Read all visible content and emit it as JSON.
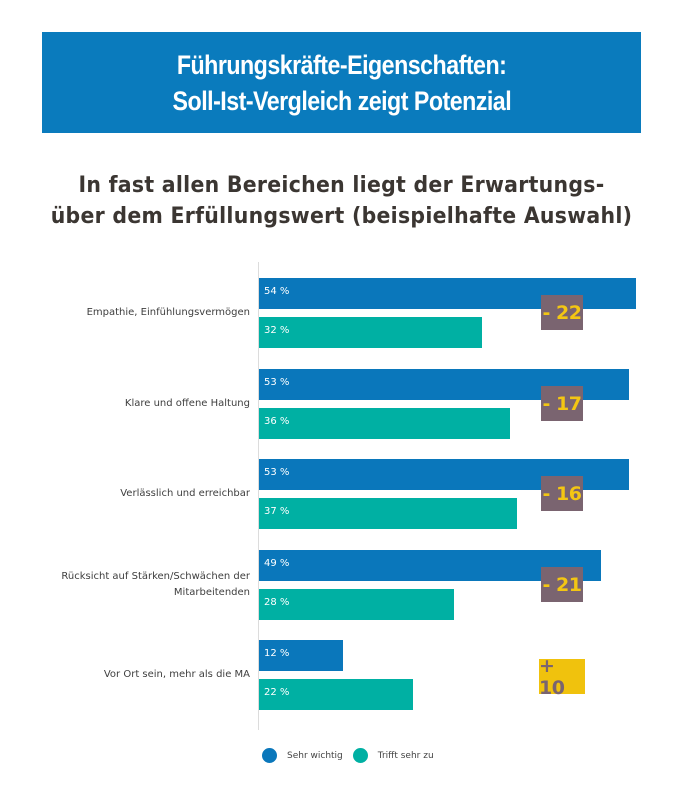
{
  "banner": {
    "line1": "Führungskräfte-Eigenschaften:",
    "line2": "Soll-Ist-Vergleich zeigt Potenzial"
  },
  "subtitle": {
    "line1": "In fast allen Bereichen liegt der Erwartungs-",
    "line2": "über dem Erfüllungswert (beispielhafte Auswahl)"
  },
  "colors": {
    "banner": "#0a7bbd",
    "sehr_wichtig": "#0a77bb",
    "trifft_sehr_zu": "#00b0a3",
    "diff_negative_bg": "#7a6470",
    "diff_negative_text": "#f3c613",
    "diff_positive_bg": "#f0c20d",
    "diff_positive_text": "#7a6470"
  },
  "chart_data": {
    "type": "bar",
    "orientation": "horizontal",
    "title": "Führungskräfte-Eigenschaften: Soll-Ist-Vergleich zeigt Potenzial",
    "subtitle": "In fast allen Bereichen liegt der Erwartungs- über dem Erfüllungswert (beispielhafte Auswahl)",
    "categories": [
      "Empathie, Einfühlungsvermögen",
      "Klare und offene Haltung",
      "Verlässlich und erreichbar",
      "Rücksicht auf Stärken/Schwächen der Mitarbeitenden",
      "Vor Ort sein, mehr als die MA"
    ],
    "category_lines": [
      [
        "Empathie, Einfühlungsvermögen"
      ],
      [
        "Klare und offene Haltung"
      ],
      [
        "Verlässlich und erreichbar"
      ],
      [
        "Rücksicht auf Stärken/Schwächen der",
        "Mitarbeitenden"
      ],
      [
        "Vor Ort sein, mehr als die MA"
      ]
    ],
    "series": [
      {
        "name": "Sehr wichtig",
        "values": [
          54,
          53,
          53,
          49,
          12
        ],
        "labels": [
          "54 %",
          "53 %",
          "53 %",
          "49 %",
          "12 %"
        ]
      },
      {
        "name": "Trifft sehr zu",
        "values": [
          32,
          36,
          37,
          28,
          22
        ],
        "labels": [
          "32 %",
          "36 %",
          "37 %",
          "28 %",
          "22 %"
        ]
      }
    ],
    "differences": [
      "- 22",
      "- 17",
      "- 16",
      "- 21",
      "+ 10"
    ],
    "difference_values": [
      -22,
      -17,
      -16,
      -21,
      10
    ],
    "unit": "%",
    "xlim": [
      0,
      54
    ],
    "grid": false,
    "legend": "bottom",
    "xlabel": "",
    "ylabel": ""
  }
}
